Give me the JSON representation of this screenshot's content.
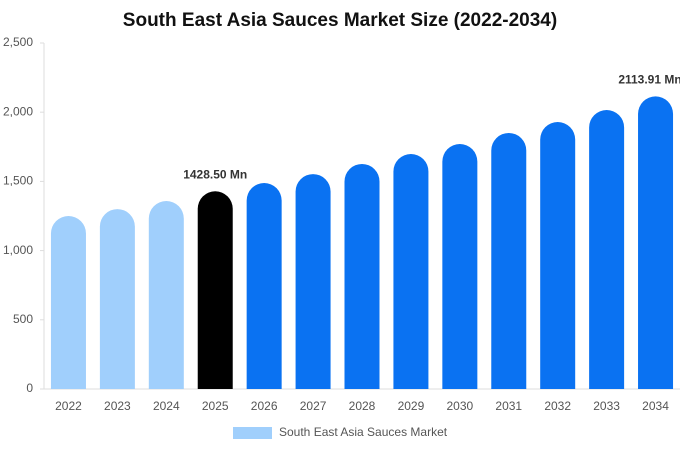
{
  "chart_data": {
    "type": "bar",
    "title": "South East Asia Sauces Market Size (2022-2034)",
    "categories": [
      "2022",
      "2023",
      "2024",
      "2025",
      "2026",
      "2027",
      "2028",
      "2029",
      "2030",
      "2031",
      "2032",
      "2033",
      "2034"
    ],
    "series": [
      {
        "name": "South East Asia Sauces Market",
        "color": "#a0cffc",
        "colors": [
          "#a0cffc",
          "#a0cffc",
          "#a0cffc",
          "#000000",
          "#0a72f2",
          "#0a72f2",
          "#0a72f2",
          "#0a72f2",
          "#0a72f2",
          "#0a72f2",
          "#0a72f2",
          "#0a72f2",
          "#0a72f2"
        ],
        "values": [
          1250,
          1300,
          1358,
          1428.5,
          1488,
          1553,
          1626,
          1698,
          1770,
          1850,
          1929,
          2016,
          2113.91
        ],
        "value_labels": [
          null,
          null,
          null,
          "1428.50 Mn",
          null,
          null,
          null,
          null,
          null,
          null,
          null,
          null,
          "2113.91 Mn"
        ]
      }
    ],
    "ylim": [
      0,
      2500
    ],
    "yticks": [
      0,
      500,
      {
        "value": 1000,
        "label": "1,000"
      },
      {
        "value": 1500,
        "label": "1,500"
      },
      {
        "value": 2000,
        "label": "2,000"
      },
      {
        "value": 2500,
        "label": "2,500"
      }
    ],
    "grid": false
  }
}
